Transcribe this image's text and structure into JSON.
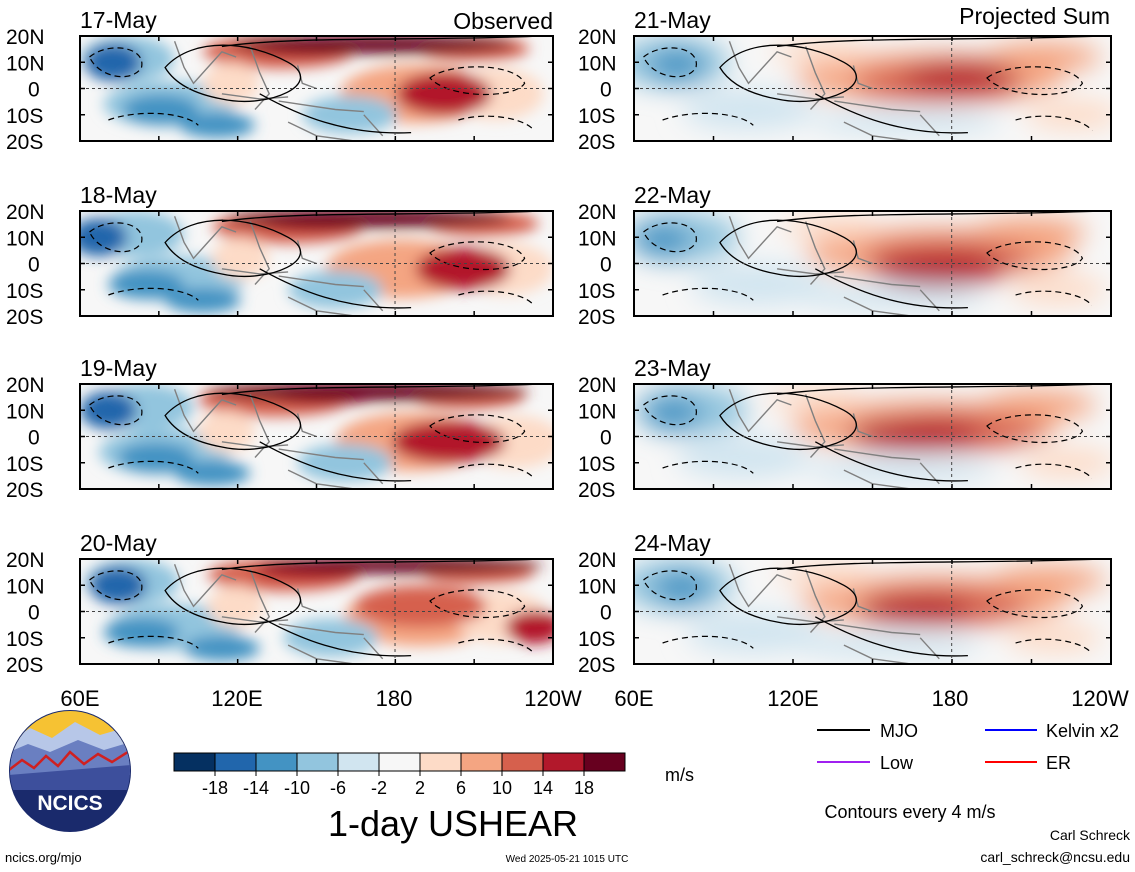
{
  "header": {
    "left_label": "Observed",
    "right_label": "Projected Sum"
  },
  "panels": {
    "observed": [
      {
        "date": "17-May"
      },
      {
        "date": "18-May"
      },
      {
        "date": "19-May"
      },
      {
        "date": "20-May"
      }
    ],
    "projected": [
      {
        "date": "21-May"
      },
      {
        "date": "22-May"
      },
      {
        "date": "23-May"
      },
      {
        "date": "24-May"
      }
    ]
  },
  "lat_labels": [
    "20N",
    "10N",
    "0",
    "10S",
    "20S"
  ],
  "lon_labels": [
    "60E",
    "120E",
    "180",
    "120W"
  ],
  "colorbar": {
    "colors": [
      "#053061",
      "#2166ac",
      "#4393c3",
      "#92c5de",
      "#d1e5f0",
      "#f7f7f7",
      "#fddbc7",
      "#f4a582",
      "#d6604d",
      "#b2182b",
      "#67001f"
    ],
    "tick_labels": [
      "-18",
      "-14",
      "-10",
      "-6",
      "-2",
      "2",
      "6",
      "10",
      "14",
      "18"
    ],
    "unit": "m/s"
  },
  "title": "1-day USHEAR",
  "legend": {
    "items": [
      {
        "label": "MJO",
        "color": "#000000"
      },
      {
        "label": "Kelvin x2",
        "color": "#0000ff"
      },
      {
        "label": "Low",
        "color": "#a020f0"
      },
      {
        "label": "ER",
        "color": "#ff0000"
      }
    ],
    "contour_note": "Contours every 4 m/s"
  },
  "logo": {
    "text": "NCICS"
  },
  "footer": {
    "url": "ncics.org/mjo",
    "timestamp": "Wed 2025-05-21 1015 UTC",
    "author": "Carl Schreck",
    "email": "carl_schreck@ncsu.edu"
  }
}
